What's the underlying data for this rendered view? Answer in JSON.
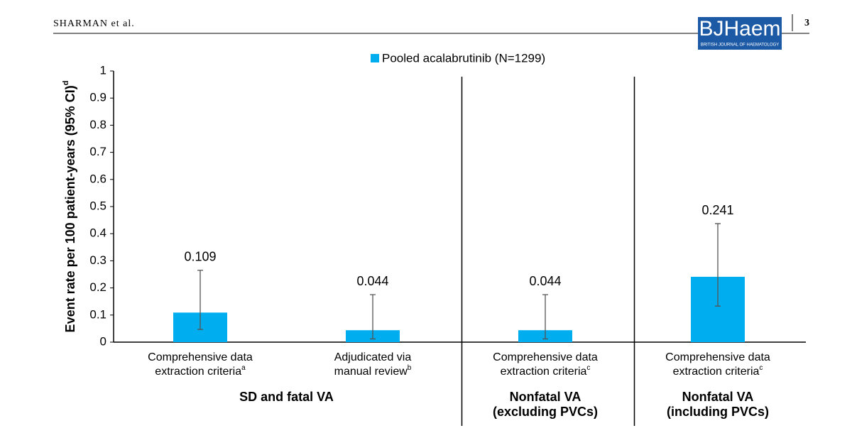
{
  "header": {
    "authors": "SHARMAN et al.",
    "page": "3",
    "logo": "BJHaem",
    "logo_subtitle": "BRITISH JOURNAL OF HAEMATOLOGY"
  },
  "chart_data": {
    "type": "bar",
    "y_label": "Event rate per 100 patient-years (95% CI)",
    "y_label_note": "d",
    "categories": [
      [
        "Comprehensive data",
        "extraction criteria"
      ],
      [
        "Adjudicated via",
        "manual review"
      ],
      [
        "Comprehensive data",
        "extraction criteria"
      ],
      [
        "Comprehensive data",
        "extraction criteria"
      ]
    ],
    "category_notes": [
      "a",
      "b",
      "c",
      "c"
    ],
    "groups": [
      {
        "label": [
          "SD and fatal VA"
        ],
        "size": 2
      },
      {
        "label": [
          "Nonfatal VA",
          "(excluding PVCs)"
        ],
        "size": 1
      },
      {
        "label": [
          "Nonfatal VA",
          "(including PVCs)"
        ],
        "size": 1
      }
    ],
    "series": [
      {
        "name": "Pooled acalabrutinib (N=1299)",
        "color": "#00aeef",
        "values": [
          0.109,
          0.044,
          0.044,
          0.241
        ],
        "ci_lower": [
          0.047,
          0.012,
          0.012,
          0.133
        ],
        "ci_upper": [
          0.265,
          0.175,
          0.175,
          0.437
        ]
      }
    ],
    "ylim": [
      0,
      1
    ],
    "yticks": [
      0,
      0.1,
      0.2,
      0.3,
      0.4,
      0.5,
      0.6,
      0.7,
      0.8,
      0.9,
      1
    ],
    "legend": "top"
  }
}
